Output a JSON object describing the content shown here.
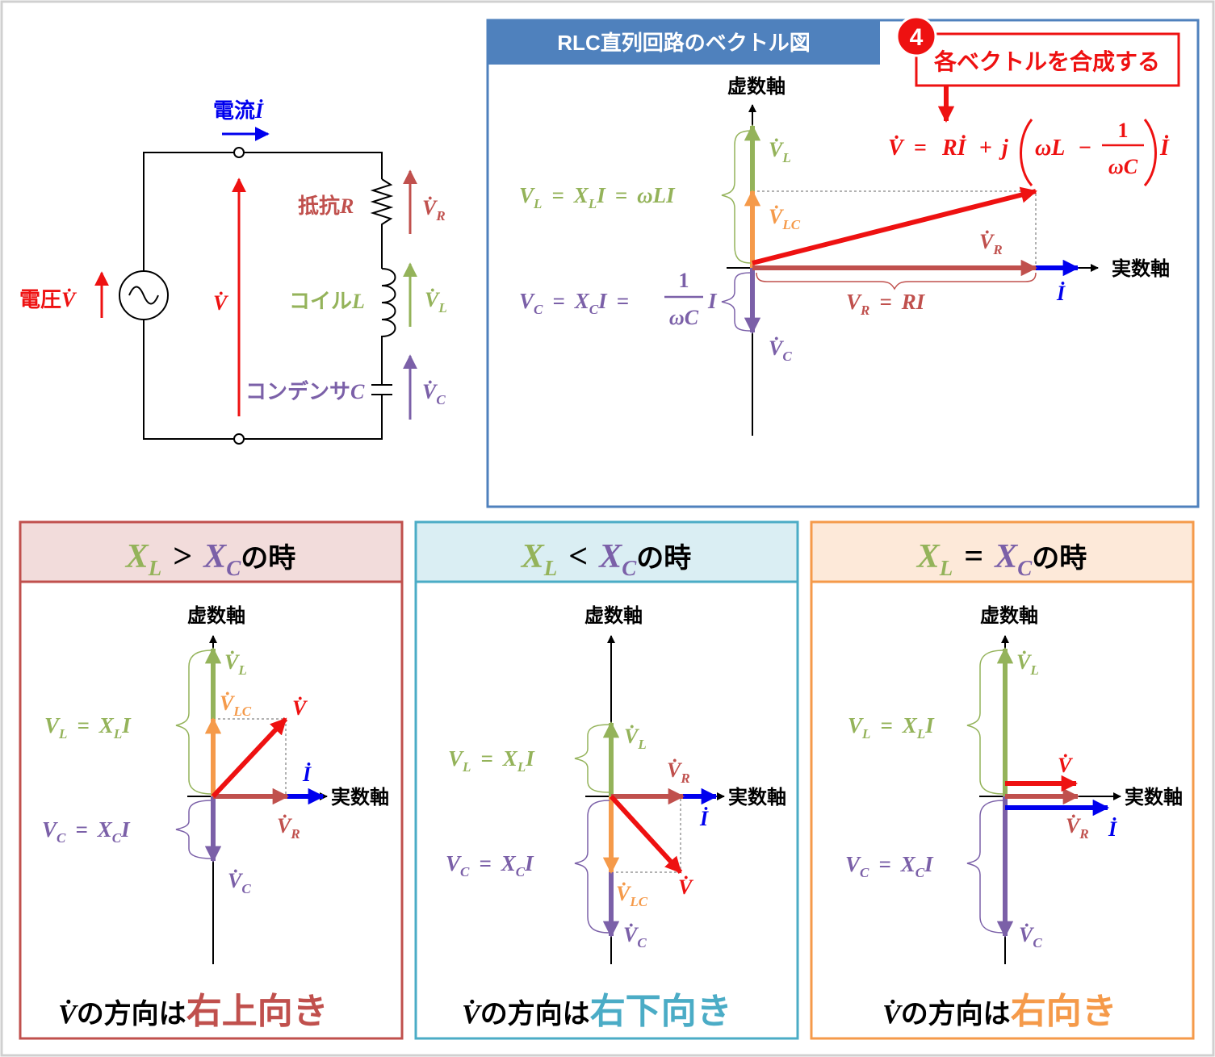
{
  "colors": {
    "red": "#ee1111",
    "blue": "#0000ee",
    "green": "#94b35a",
    "orange": "#f59a4a",
    "purple": "#7b60a8",
    "brown": "#c0504d",
    "teal": "#4bacc6",
    "header_blue": "#4f81bd",
    "black": "#000000"
  },
  "circuit": {
    "current_label": "電流",
    "current_symbol": "İ",
    "voltage_label": "電圧",
    "voltage_symbol": "V̇",
    "total_v_symbol": "V̇",
    "resistor_label": "抵抗",
    "resistor_symbol": "R",
    "coil_label": "コイル",
    "coil_symbol": "L",
    "capacitor_label": "コンデンサ",
    "capacitor_symbol": "C",
    "vr_main": "V̇",
    "vr_sub": "R",
    "vl_main": "V̇",
    "vl_sub": "L",
    "vc_main": "V̇",
    "vc_sub": "C"
  },
  "main": {
    "header": "RLC直列回路のベクトル図",
    "step_badge": "4",
    "step_text": "各ベクトルを合成する",
    "formula": {
      "lhs": "V̇",
      "eq": "=",
      "r_term": "Rİ",
      "plus": "+",
      "j": "j",
      "omega_l": "ωL",
      "minus": "−",
      "frac_num": "1",
      "frac_den": "ωC",
      "tail": "İ"
    },
    "imag_axis": "虚数軸",
    "real_axis": "実数軸",
    "vl_label": {
      "main": "V̇",
      "sub": "L"
    },
    "vlc_label": {
      "main": "V̇",
      "sub": "LC"
    },
    "vr_label": {
      "main": "V̇",
      "sub": "R"
    },
    "vc_label": {
      "main": "V̇",
      "sub": "C"
    },
    "i_label": "İ",
    "vl_eq": {
      "v": "V",
      "sub": "L",
      "eq1": "=",
      "x": "X",
      "xsub": "L",
      "i": "I",
      "eq2": "=",
      "wli": "ωLI"
    },
    "vc_eq": {
      "v": "V",
      "sub": "C",
      "eq1": "=",
      "x": "X",
      "xsub": "C",
      "i": "I",
      "eq2": "=",
      "num": "1",
      "den": "ωC",
      "tail": "I"
    },
    "vr_eq": {
      "v": "V",
      "sub": "R",
      "eq": "=",
      "rhs": "RI"
    }
  },
  "panels": [
    {
      "id": "gt",
      "header": {
        "xl": "X",
        "xl_sub": "L",
        "op": ">",
        "xc": "X",
        "xc_sub": "C",
        "tail": "の時"
      },
      "imag_axis": "虚数軸",
      "real_axis": "実数軸",
      "vl": {
        "main": "V̇",
        "sub": "L"
      },
      "vlc": {
        "main": "V̇",
        "sub": "LC"
      },
      "v": "V̇",
      "i": "İ",
      "vr": {
        "main": "V̇",
        "sub": "R"
      },
      "vc": {
        "main": "V̇",
        "sub": "C"
      },
      "vl_eq": {
        "v": "V",
        "sub": "L",
        "eq": "=",
        "x": "X",
        "xsub": "L",
        "i": "I"
      },
      "vc_eq": {
        "v": "V",
        "sub": "C",
        "eq": "=",
        "x": "X",
        "xsub": "C",
        "i": "I"
      },
      "footer": {
        "v": "V̇",
        "mid": "の方向は",
        "dir": "右上向き"
      }
    },
    {
      "id": "lt",
      "header": {
        "xl": "X",
        "xl_sub": "L",
        "op": "<",
        "xc": "X",
        "xc_sub": "C",
        "tail": "の時"
      },
      "imag_axis": "虚数軸",
      "real_axis": "実数軸",
      "vl": {
        "main": "V̇",
        "sub": "L"
      },
      "vlc": {
        "main": "V̇",
        "sub": "LC"
      },
      "v": "V̇",
      "i": "İ",
      "vr": {
        "main": "V̇",
        "sub": "R"
      },
      "vc": {
        "main": "V̇",
        "sub": "C"
      },
      "vl_eq": {
        "v": "V",
        "sub": "L",
        "eq": "=",
        "x": "X",
        "xsub": "L",
        "i": "I"
      },
      "vc_eq": {
        "v": "V",
        "sub": "C",
        "eq": "=",
        "x": "X",
        "xsub": "C",
        "i": "I"
      },
      "footer": {
        "v": "V̇",
        "mid": "の方向は",
        "dir": "右下向き"
      }
    },
    {
      "id": "eq",
      "header": {
        "xl": "X",
        "xl_sub": "L",
        "op": "=",
        "xc": "X",
        "xc_sub": "C",
        "tail": "の時"
      },
      "imag_axis": "虚数軸",
      "real_axis": "実数軸",
      "vl": {
        "main": "V̇",
        "sub": "L"
      },
      "v": "V̇",
      "i": "İ",
      "vr": {
        "main": "V̇",
        "sub": "R"
      },
      "vc": {
        "main": "V̇",
        "sub": "C"
      },
      "vl_eq": {
        "v": "V",
        "sub": "L",
        "eq": "=",
        "x": "X",
        "xsub": "L",
        "i": "I"
      },
      "vc_eq": {
        "v": "V",
        "sub": "C",
        "eq": "=",
        "x": "X",
        "xsub": "C",
        "i": "I"
      },
      "footer": {
        "v": "V̇",
        "mid": "の方向は",
        "dir": "右向き"
      }
    }
  ]
}
